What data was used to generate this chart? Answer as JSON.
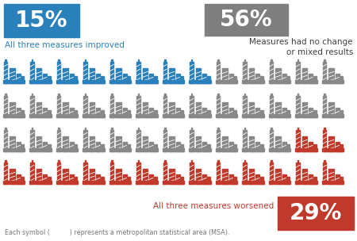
{
  "blue_count": 8,
  "gray_count": 29,
  "red_count": 15,
  "total": 52,
  "pct_blue": "15%",
  "pct_gray": "56%",
  "pct_red": "29%",
  "label_blue": "All three measures improved",
  "label_gray_line1": "Measures had no change",
  "label_gray_line2": "or mixed results",
  "label_red": "All three measures worsened",
  "footer": "Each symbol (          ) represents a metropolitan statistical area (MSA).",
  "color_blue": "#2980BA",
  "color_gray": "#888888",
  "color_red": "#C0392B",
  "bg_color": "#FFFFFF",
  "box_blue": "#2980BA",
  "box_gray": "#7F7F7F",
  "box_red": "#C0392B",
  "cols": 13,
  "figsize": [
    4.5,
    3.04
  ],
  "dpi": 100
}
